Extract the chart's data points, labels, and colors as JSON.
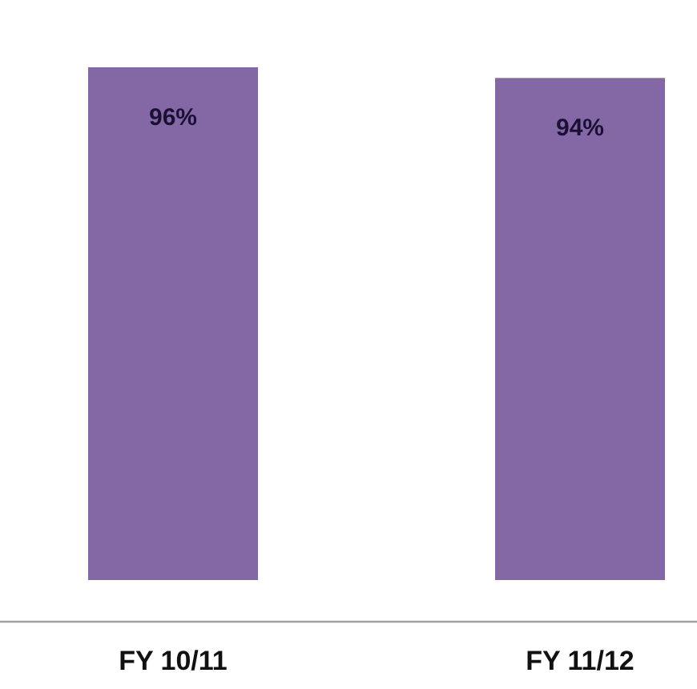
{
  "chart_data": {
    "type": "bar",
    "categories": [
      "FY 10/11",
      "FY 11/12"
    ],
    "values": [
      96,
      94
    ],
    "value_labels": [
      "96%",
      "94%"
    ],
    "color": "#8468a6"
  }
}
